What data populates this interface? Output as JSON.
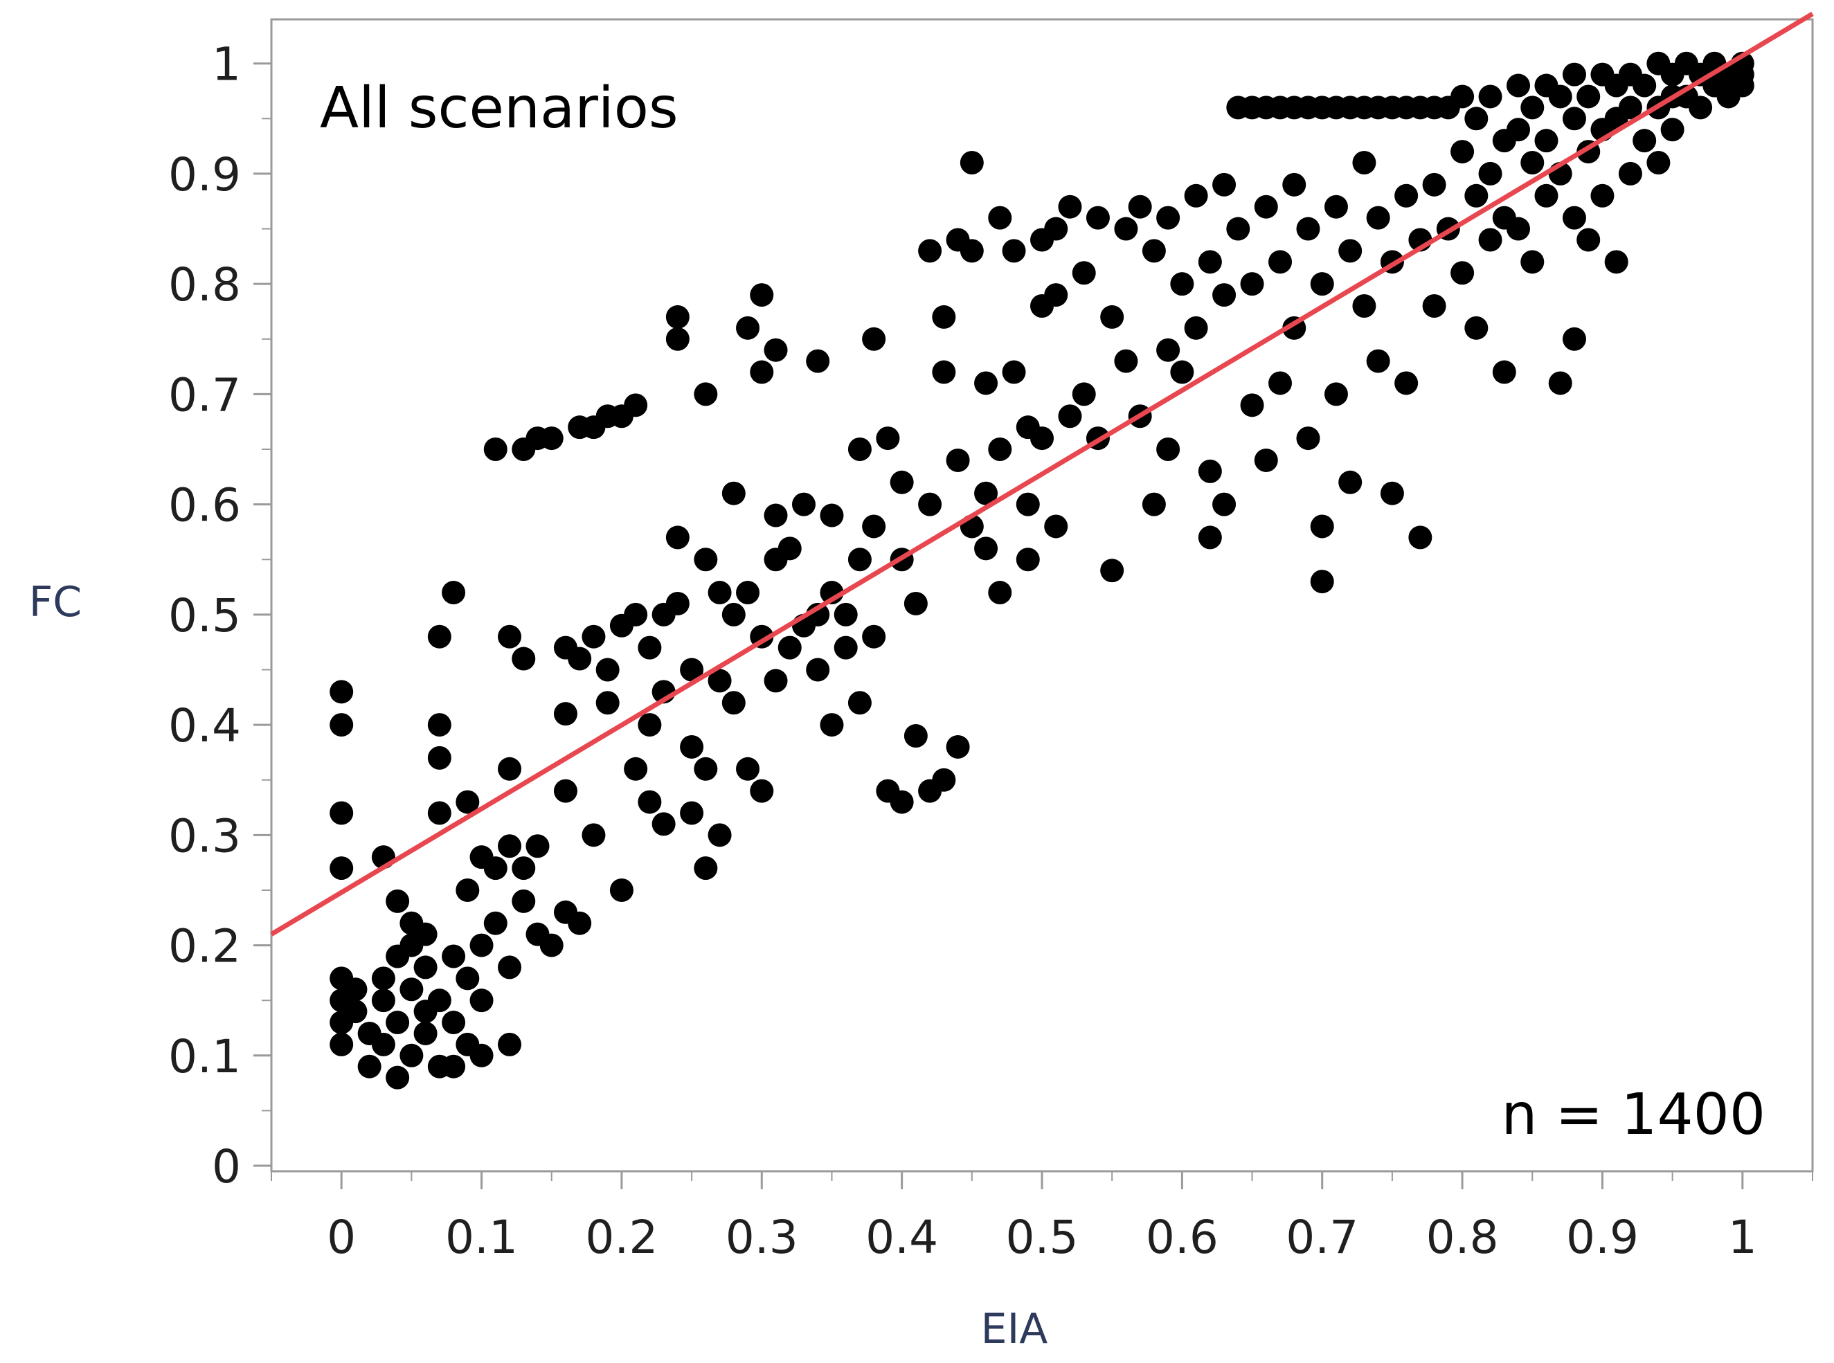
{
  "chart_data": {
    "type": "scatter",
    "title": "",
    "xlabel": "EIA",
    "ylabel": "FC",
    "xlim": [
      -0.05,
      1.05
    ],
    "ylim": [
      -0.005,
      1.04
    ],
    "x_ticks": [
      "0",
      "0.1",
      "0.2",
      "0.3",
      "0.4",
      "0.5",
      "0.6",
      "0.7",
      "0.8",
      "0.9",
      "1"
    ],
    "y_ticks": [
      "0",
      "0.1",
      "0.2",
      "0.3",
      "0.4",
      "0.5",
      "0.6",
      "0.7",
      "0.8",
      "0.9",
      "1"
    ],
    "annotations": {
      "top_left": "All scenarios",
      "bottom_right": "n = 1400"
    },
    "grid": false,
    "legend": "none",
    "colors": {
      "points": "#000000",
      "fit_line": "#e8474f",
      "axis": "#9a9a9a",
      "tick_text": "#1f1f1f"
    },
    "fit_line": {
      "x": [
        -0.05,
        1.05
      ],
      "y": [
        0.21,
        1.045
      ]
    },
    "series": [
      {
        "points": [
          [
            0.0,
            0.43
          ],
          [
            0.0,
            0.4
          ],
          [
            0.0,
            0.32
          ],
          [
            0.0,
            0.27
          ],
          [
            0.0,
            0.17
          ],
          [
            0.0,
            0.15
          ],
          [
            0.0,
            0.13
          ],
          [
            0.0,
            0.11
          ],
          [
            0.01,
            0.16
          ],
          [
            0.01,
            0.14
          ],
          [
            0.02,
            0.12
          ],
          [
            0.02,
            0.09
          ],
          [
            0.03,
            0.11
          ],
          [
            0.03,
            0.15
          ],
          [
            0.03,
            0.17
          ],
          [
            0.03,
            0.28
          ],
          [
            0.04,
            0.19
          ],
          [
            0.04,
            0.13
          ],
          [
            0.04,
            0.08
          ],
          [
            0.04,
            0.24
          ],
          [
            0.05,
            0.2
          ],
          [
            0.05,
            0.16
          ],
          [
            0.05,
            0.1
          ],
          [
            0.05,
            0.22
          ],
          [
            0.06,
            0.14
          ],
          [
            0.06,
            0.18
          ],
          [
            0.06,
            0.12
          ],
          [
            0.06,
            0.21
          ],
          [
            0.07,
            0.09
          ],
          [
            0.07,
            0.15
          ],
          [
            0.07,
            0.48
          ],
          [
            0.07,
            0.4
          ],
          [
            0.07,
            0.37
          ],
          [
            0.07,
            0.32
          ],
          [
            0.08,
            0.52
          ],
          [
            0.08,
            0.19
          ],
          [
            0.08,
            0.13
          ],
          [
            0.08,
            0.09
          ],
          [
            0.09,
            0.17
          ],
          [
            0.09,
            0.11
          ],
          [
            0.09,
            0.25
          ],
          [
            0.09,
            0.33
          ],
          [
            0.1,
            0.28
          ],
          [
            0.1,
            0.2
          ],
          [
            0.1,
            0.15
          ],
          [
            0.1,
            0.1
          ],
          [
            0.11,
            0.27
          ],
          [
            0.11,
            0.22
          ],
          [
            0.11,
            0.65
          ],
          [
            0.12,
            0.48
          ],
          [
            0.12,
            0.36
          ],
          [
            0.12,
            0.29
          ],
          [
            0.12,
            0.18
          ],
          [
            0.12,
            0.11
          ],
          [
            0.13,
            0.65
          ],
          [
            0.13,
            0.46
          ],
          [
            0.13,
            0.27
          ],
          [
            0.13,
            0.24
          ],
          [
            0.14,
            0.66
          ],
          [
            0.14,
            0.29
          ],
          [
            0.14,
            0.21
          ],
          [
            0.15,
            0.66
          ],
          [
            0.15,
            0.2
          ],
          [
            0.16,
            0.47
          ],
          [
            0.16,
            0.41
          ],
          [
            0.16,
            0.34
          ],
          [
            0.16,
            0.23
          ],
          [
            0.17,
            0.67
          ],
          [
            0.17,
            0.46
          ],
          [
            0.17,
            0.22
          ],
          [
            0.18,
            0.67
          ],
          [
            0.18,
            0.48
          ],
          [
            0.18,
            0.3
          ],
          [
            0.19,
            0.45
          ],
          [
            0.19,
            0.42
          ],
          [
            0.19,
            0.68
          ],
          [
            0.2,
            0.49
          ],
          [
            0.2,
            0.68
          ],
          [
            0.2,
            0.25
          ],
          [
            0.21,
            0.5
          ],
          [
            0.21,
            0.36
          ],
          [
            0.21,
            0.69
          ],
          [
            0.22,
            0.47
          ],
          [
            0.22,
            0.4
          ],
          [
            0.22,
            0.33
          ],
          [
            0.23,
            0.5
          ],
          [
            0.23,
            0.43
          ],
          [
            0.23,
            0.31
          ],
          [
            0.24,
            0.77
          ],
          [
            0.24,
            0.75
          ],
          [
            0.24,
            0.57
          ],
          [
            0.24,
            0.51
          ],
          [
            0.25,
            0.45
          ],
          [
            0.25,
            0.38
          ],
          [
            0.25,
            0.32
          ],
          [
            0.26,
            0.7
          ],
          [
            0.26,
            0.55
          ],
          [
            0.26,
            0.36
          ],
          [
            0.26,
            0.27
          ],
          [
            0.27,
            0.52
          ],
          [
            0.27,
            0.44
          ],
          [
            0.27,
            0.3
          ],
          [
            0.28,
            0.61
          ],
          [
            0.28,
            0.5
          ],
          [
            0.28,
            0.42
          ],
          [
            0.29,
            0.76
          ],
          [
            0.29,
            0.52
          ],
          [
            0.29,
            0.36
          ],
          [
            0.3,
            0.79
          ],
          [
            0.3,
            0.72
          ],
          [
            0.3,
            0.48
          ],
          [
            0.3,
            0.34
          ],
          [
            0.31,
            0.74
          ],
          [
            0.31,
            0.59
          ],
          [
            0.31,
            0.55
          ],
          [
            0.31,
            0.44
          ],
          [
            0.32,
            0.56
          ],
          [
            0.32,
            0.47
          ],
          [
            0.33,
            0.49
          ],
          [
            0.33,
            0.6
          ],
          [
            0.34,
            0.73
          ],
          [
            0.34,
            0.5
          ],
          [
            0.34,
            0.45
          ],
          [
            0.35,
            0.59
          ],
          [
            0.35,
            0.52
          ],
          [
            0.35,
            0.4
          ],
          [
            0.36,
            0.47
          ],
          [
            0.36,
            0.5
          ],
          [
            0.37,
            0.65
          ],
          [
            0.37,
            0.55
          ],
          [
            0.37,
            0.42
          ],
          [
            0.38,
            0.75
          ],
          [
            0.38,
            0.58
          ],
          [
            0.38,
            0.48
          ],
          [
            0.39,
            0.66
          ],
          [
            0.39,
            0.34
          ],
          [
            0.4,
            0.62
          ],
          [
            0.4,
            0.55
          ],
          [
            0.4,
            0.33
          ],
          [
            0.41,
            0.51
          ],
          [
            0.41,
            0.39
          ],
          [
            0.42,
            0.83
          ],
          [
            0.42,
            0.6
          ],
          [
            0.42,
            0.34
          ],
          [
            0.43,
            0.77
          ],
          [
            0.43,
            0.72
          ],
          [
            0.43,
            0.35
          ],
          [
            0.44,
            0.84
          ],
          [
            0.44,
            0.64
          ],
          [
            0.44,
            0.38
          ],
          [
            0.45,
            0.91
          ],
          [
            0.45,
            0.83
          ],
          [
            0.45,
            0.58
          ],
          [
            0.46,
            0.71
          ],
          [
            0.46,
            0.61
          ],
          [
            0.46,
            0.56
          ],
          [
            0.47,
            0.86
          ],
          [
            0.47,
            0.65
          ],
          [
            0.47,
            0.52
          ],
          [
            0.48,
            0.83
          ],
          [
            0.48,
            0.72
          ],
          [
            0.49,
            0.67
          ],
          [
            0.49,
            0.6
          ],
          [
            0.49,
            0.55
          ],
          [
            0.5,
            0.84
          ],
          [
            0.5,
            0.78
          ],
          [
            0.5,
            0.66
          ],
          [
            0.51,
            0.85
          ],
          [
            0.51,
            0.79
          ],
          [
            0.51,
            0.58
          ],
          [
            0.52,
            0.87
          ],
          [
            0.52,
            0.68
          ],
          [
            0.53,
            0.81
          ],
          [
            0.53,
            0.7
          ],
          [
            0.54,
            0.86
          ],
          [
            0.54,
            0.66
          ],
          [
            0.55,
            0.77
          ],
          [
            0.55,
            0.54
          ],
          [
            0.56,
            0.85
          ],
          [
            0.56,
            0.73
          ],
          [
            0.57,
            0.87
          ],
          [
            0.57,
            0.68
          ],
          [
            0.58,
            0.83
          ],
          [
            0.58,
            0.6
          ],
          [
            0.59,
            0.86
          ],
          [
            0.59,
            0.74
          ],
          [
            0.59,
            0.65
          ],
          [
            0.6,
            0.8
          ],
          [
            0.6,
            0.72
          ],
          [
            0.61,
            0.88
          ],
          [
            0.61,
            0.76
          ],
          [
            0.62,
            0.82
          ],
          [
            0.62,
            0.63
          ],
          [
            0.62,
            0.57
          ],
          [
            0.63,
            0.89
          ],
          [
            0.63,
            0.79
          ],
          [
            0.63,
            0.6
          ],
          [
            0.64,
            0.96
          ],
          [
            0.64,
            0.85
          ],
          [
            0.65,
            0.96
          ],
          [
            0.65,
            0.8
          ],
          [
            0.65,
            0.69
          ],
          [
            0.66,
            0.96
          ],
          [
            0.66,
            0.87
          ],
          [
            0.66,
            0.64
          ],
          [
            0.67,
            0.96
          ],
          [
            0.67,
            0.82
          ],
          [
            0.67,
            0.71
          ],
          [
            0.68,
            0.96
          ],
          [
            0.68,
            0.89
          ],
          [
            0.68,
            0.76
          ],
          [
            0.69,
            0.96
          ],
          [
            0.69,
            0.85
          ],
          [
            0.69,
            0.66
          ],
          [
            0.7,
            0.96
          ],
          [
            0.7,
            0.8
          ],
          [
            0.7,
            0.58
          ],
          [
            0.7,
            0.53
          ],
          [
            0.71,
            0.96
          ],
          [
            0.71,
            0.87
          ],
          [
            0.71,
            0.7
          ],
          [
            0.72,
            0.96
          ],
          [
            0.72,
            0.83
          ],
          [
            0.72,
            0.62
          ],
          [
            0.73,
            0.96
          ],
          [
            0.73,
            0.91
          ],
          [
            0.73,
            0.78
          ],
          [
            0.74,
            0.96
          ],
          [
            0.74,
            0.86
          ],
          [
            0.74,
            0.73
          ],
          [
            0.75,
            0.96
          ],
          [
            0.75,
            0.82
          ],
          [
            0.75,
            0.61
          ],
          [
            0.76,
            0.96
          ],
          [
            0.76,
            0.88
          ],
          [
            0.76,
            0.71
          ],
          [
            0.77,
            0.96
          ],
          [
            0.77,
            0.84
          ],
          [
            0.77,
            0.57
          ],
          [
            0.78,
            0.96
          ],
          [
            0.78,
            0.89
          ],
          [
            0.78,
            0.78
          ],
          [
            0.79,
            0.96
          ],
          [
            0.79,
            0.85
          ],
          [
            0.8,
            0.97
          ],
          [
            0.8,
            0.92
          ],
          [
            0.8,
            0.81
          ],
          [
            0.81,
            0.95
          ],
          [
            0.81,
            0.88
          ],
          [
            0.81,
            0.76
          ],
          [
            0.82,
            0.97
          ],
          [
            0.82,
            0.9
          ],
          [
            0.82,
            0.84
          ],
          [
            0.83,
            0.93
          ],
          [
            0.83,
            0.86
          ],
          [
            0.83,
            0.72
          ],
          [
            0.84,
            0.98
          ],
          [
            0.84,
            0.94
          ],
          [
            0.84,
            0.85
          ],
          [
            0.85,
            0.96
          ],
          [
            0.85,
            0.91
          ],
          [
            0.85,
            0.82
          ],
          [
            0.86,
            0.98
          ],
          [
            0.86,
            0.93
          ],
          [
            0.86,
            0.88
          ],
          [
            0.87,
            0.97
          ],
          [
            0.87,
            0.9
          ],
          [
            0.87,
            0.71
          ],
          [
            0.88,
            0.99
          ],
          [
            0.88,
            0.95
          ],
          [
            0.88,
            0.86
          ],
          [
            0.88,
            0.75
          ],
          [
            0.89,
            0.97
          ],
          [
            0.89,
            0.92
          ],
          [
            0.89,
            0.84
          ],
          [
            0.9,
            0.99
          ],
          [
            0.9,
            0.94
          ],
          [
            0.9,
            0.88
          ],
          [
            0.91,
            0.98
          ],
          [
            0.91,
            0.95
          ],
          [
            0.91,
            0.82
          ],
          [
            0.92,
            0.99
          ],
          [
            0.92,
            0.96
          ],
          [
            0.92,
            0.9
          ],
          [
            0.93,
            0.98
          ],
          [
            0.93,
            0.93
          ],
          [
            0.94,
            1.0
          ],
          [
            0.94,
            0.96
          ],
          [
            0.94,
            0.91
          ],
          [
            0.95,
            0.99
          ],
          [
            0.95,
            0.97
          ],
          [
            0.95,
            0.94
          ],
          [
            0.96,
            1.0
          ],
          [
            0.96,
            0.97
          ],
          [
            0.97,
            0.99
          ],
          [
            0.97,
            0.96
          ],
          [
            0.98,
            1.0
          ],
          [
            0.98,
            0.98
          ],
          [
            0.99,
            0.99
          ],
          [
            0.99,
            0.97
          ],
          [
            1.0,
            1.0
          ],
          [
            1.0,
            0.99
          ],
          [
            1.0,
            0.98
          ]
        ]
      }
    ]
  }
}
